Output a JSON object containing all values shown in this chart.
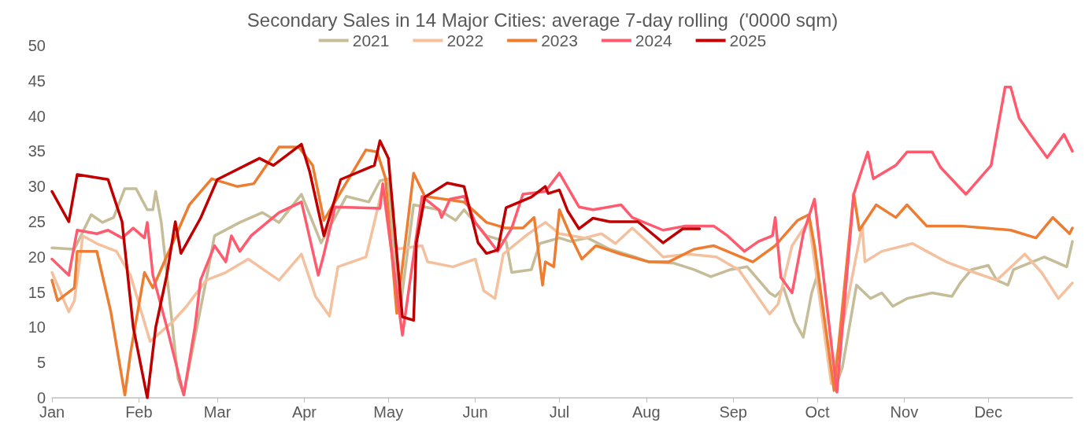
{
  "chart_data": {
    "type": "line",
    "title": "Secondary Sales in 14 Major Cities: average 7-day rolling  ('0000 sqm)",
    "xlim": [
      "--01-01",
      "--12-31"
    ],
    "xticks": [
      {
        "value": "--01-01",
        "label": "Jan"
      },
      {
        "value": "--02-01",
        "label": "Feb"
      },
      {
        "value": "--03-01",
        "label": "Mar"
      },
      {
        "value": "--04-01",
        "label": "Apr"
      },
      {
        "value": "--05-01",
        "label": "May"
      },
      {
        "value": "--06-01",
        "label": "Jun"
      },
      {
        "value": "--07-01",
        "label": "Jul"
      },
      {
        "value": "--08-01",
        "label": "Aug"
      },
      {
        "value": "--09-01",
        "label": "Sep"
      },
      {
        "value": "--10-01",
        "label": "Oct"
      },
      {
        "value": "--11-01",
        "label": "Nov"
      },
      {
        "value": "--12-01",
        "label": "Dec"
      }
    ],
    "ylim": [
      0,
      50
    ],
    "yticks": [
      0,
      5,
      10,
      15,
      20,
      25,
      30,
      35,
      40,
      45,
      50
    ],
    "grid": false,
    "legend": "top",
    "marker": "none",
    "line_style": "solid",
    "series": [
      {
        "name": "2021",
        "color": "#c4bd97",
        "x": [
          "--01-01",
          "--01-09",
          "--01-15",
          "--01-19",
          "--01-23",
          "--01-27",
          "--01-31",
          "--02-04",
          "--02-06",
          "--02-07",
          "--02-09",
          "--02-12",
          "--02-15",
          "--02-17",
          "--02-25",
          "--02-28",
          "--03-09",
          "--03-17",
          "--03-23",
          "--03-31",
          "--04-07",
          "--04-16",
          "--04-24",
          "--04-28",
          "--05-01",
          "--05-05",
          "--05-10",
          "--05-19",
          "--05-25",
          "--05-28",
          "--06-05",
          "--06-12",
          "--06-14",
          "--06-21",
          "--06-24",
          "--07-01",
          "--07-05",
          "--07-11",
          "--07-19",
          "--07-28",
          "--08-02",
          "--08-11",
          "--08-18",
          "--08-24",
          "--08-31",
          "--09-06",
          "--09-14",
          "--09-16",
          "--09-19",
          "--09-23",
          "--09-26",
          "--09-29",
          "--10-01",
          "--10-07",
          "--10-10",
          "--10-15",
          "--10-20",
          "--10-24",
          "--10-28",
          "--11-02",
          "--11-11",
          "--11-18",
          "--11-21",
          "--11-25",
          "--12-01",
          "--12-04",
          "--12-08",
          "--12-10",
          "--12-21",
          "--12-29",
          "--12-31"
        ],
        "values": [
          21.3,
          21.1,
          26,
          24.9,
          25.6,
          29.7,
          29.7,
          26.7,
          26.7,
          29.3,
          24.9,
          13.8,
          2.7,
          0.5,
          16.7,
          23,
          24.9,
          26.3,
          24.9,
          28.9,
          22,
          28.6,
          27.8,
          30.8,
          31.1,
          12,
          27.4,
          26.7,
          25.2,
          26.7,
          23,
          22.2,
          17.8,
          18.2,
          21.9,
          22.7,
          22.2,
          22.7,
          21.1,
          20,
          19.3,
          19.1,
          18.2,
          17.2,
          18.2,
          18.6,
          14.9,
          14.4,
          15.6,
          10.8,
          8.6,
          14.9,
          17.4,
          1,
          4.4,
          16,
          14.1,
          14.9,
          13,
          14.1,
          14.9,
          14.4,
          16.3,
          18.2,
          18.8,
          16.7,
          16,
          18.2,
          20,
          18.6,
          22.2
        ]
      },
      {
        "name": "2022",
        "color": "#f4c09e",
        "x": [
          "--01-01",
          "--01-07",
          "--01-09",
          "--01-12",
          "--01-17",
          "--01-24",
          "--01-29",
          "--02-05",
          "--02-13",
          "--02-18",
          "--02-25",
          "--03-04",
          "--03-12",
          "--03-23",
          "--03-31",
          "--04-05",
          "--04-10",
          "--04-13",
          "--04-23",
          "--04-26",
          "--04-29",
          "--05-02",
          "--05-13",
          "--05-15",
          "--05-24",
          "--06-01",
          "--06-04",
          "--06-08",
          "--06-11",
          "--06-20",
          "--06-26",
          "--07-01",
          "--07-10",
          "--07-16",
          "--07-21",
          "--07-27",
          "--08-02",
          "--08-07",
          "--08-16",
          "--08-26",
          "--09-01",
          "--09-03",
          "--09-14",
          "--09-17",
          "--09-22",
          "--09-28",
          "--10-06",
          "--10-17",
          "--10-18",
          "--10-24",
          "--11-04",
          "--11-09",
          "--11-16",
          "--11-26",
          "--12-04",
          "--12-14",
          "--12-20",
          "--12-26",
          "--12-31"
        ],
        "values": [
          17.8,
          12.2,
          13.8,
          23,
          21.9,
          20.8,
          17.4,
          8,
          10.8,
          13,
          16.7,
          17.8,
          19.7,
          16.7,
          20.4,
          14.4,
          11.6,
          18.6,
          20,
          24.9,
          30,
          21,
          21.6,
          19.3,
          18.6,
          19.7,
          15.2,
          14.1,
          20.4,
          23.3,
          24.9,
          23.3,
          22.7,
          23.3,
          21.9,
          24.1,
          21.9,
          20,
          20.4,
          20,
          18.6,
          18.2,
          11.9,
          13.3,
          21.6,
          25.2,
          2,
          24.4,
          19.3,
          20.8,
          21.9,
          20.8,
          19.3,
          17.8,
          16.7,
          20.4,
          17.8,
          14.1,
          16.3
        ]
      },
      {
        "name": "2023",
        "color": "#ed7d31",
        "x": [
          "--01-01",
          "--01-03",
          "--01-09",
          "--01-10",
          "--01-17",
          "--01-22",
          "--01-27",
          "--01-29",
          "--02-03",
          "--02-06",
          "--02-19",
          "--02-27",
          "--03-08",
          "--03-14",
          "--03-23",
          "--03-30",
          "--04-04",
          "--04-08",
          "--04-23",
          "--04-27",
          "--04-30",
          "--05-04",
          "--05-10",
          "--05-14",
          "--05-28",
          "--06-05",
          "--06-12",
          "--06-18",
          "--06-22",
          "--06-25",
          "--06-26",
          "--06-29",
          "--07-01",
          "--07-05",
          "--07-09",
          "--07-14",
          "--07-23",
          "--08-02",
          "--08-09",
          "--08-18",
          "--08-25",
          "--09-08",
          "--09-16",
          "--09-24",
          "--09-28",
          "--09-30",
          "--10-07",
          "--10-14",
          "--10-16",
          "--10-22",
          "--10-29",
          "--11-02",
          "--11-09",
          "--11-21",
          "--11-30",
          "--12-09",
          "--12-18",
          "--12-24",
          "--12-30",
          "--12-31"
        ],
        "values": [
          16.7,
          13.8,
          15.6,
          20.8,
          20.8,
          12.2,
          0.4,
          6.3,
          17.8,
          15.6,
          27.4,
          31.1,
          30,
          30.4,
          35.6,
          35.6,
          33,
          25.2,
          35.2,
          34.9,
          31.1,
          12,
          31.9,
          28.6,
          27.8,
          24.9,
          24.1,
          24.1,
          25.6,
          16,
          19.3,
          18.6,
          26.7,
          23,
          19.7,
          21.6,
          20.4,
          19.3,
          19.3,
          21.1,
          21.6,
          19.3,
          21.6,
          25.2,
          26,
          21.6,
          1.1,
          29,
          23.8,
          27.4,
          25.6,
          27.4,
          24.4,
          24.4,
          24.1,
          23.8,
          22.7,
          25.6,
          23.3,
          24.1
        ]
      },
      {
        "name": "2024",
        "color": "#ff5a6e",
        "x": [
          "--01-01",
          "--01-07",
          "--01-10",
          "--01-17",
          "--01-21",
          "--01-26",
          "--01-30",
          "--02-03",
          "--02-04",
          "--02-06",
          "--02-11",
          "--02-17",
          "--02-21",
          "--02-23",
          "--02-28",
          "--03-04",
          "--03-06",
          "--03-09",
          "--03-13",
          "--03-23",
          "--03-31",
          "--04-06",
          "--04-08",
          "--04-12",
          "--04-28",
          "--04-29",
          "--05-06",
          "--05-13",
          "--05-19",
          "--05-20",
          "--05-23",
          "--05-28",
          "--06-01",
          "--06-09",
          "--06-14",
          "--06-18",
          "--06-26",
          "--07-01",
          "--07-08",
          "--07-13",
          "--07-23",
          "--07-27",
          "--08-07",
          "--08-15",
          "--08-25",
          "--08-30",
          "--09-05",
          "--09-10",
          "--09-15",
          "--09-16",
          "--09-18",
          "--09-22",
          "--09-26",
          "--09-30",
          "--10-08",
          "--10-14",
          "--10-19",
          "--10-21",
          "--10-29",
          "--11-02",
          "--11-11",
          "--11-14",
          "--11-23",
          "--12-02",
          "--12-07",
          "--12-09",
          "--12-12",
          "--12-16",
          "--12-22",
          "--12-28",
          "--12-31"
        ],
        "values": [
          19.7,
          17.4,
          23.8,
          23.3,
          23.8,
          22.7,
          24.1,
          22.7,
          24.9,
          17.4,
          10,
          0.4,
          10,
          16.7,
          21.6,
          19.3,
          23,
          20.8,
          23,
          26.3,
          27.8,
          17.4,
          20.4,
          27.1,
          26.9,
          30.4,
          8.9,
          28.6,
          26.7,
          25.6,
          28.2,
          28.6,
          24.9,
          20.8,
          24.1,
          28.9,
          29.3,
          31.9,
          27.1,
          26.7,
          27.4,
          25.6,
          23.8,
          24.4,
          24.4,
          23,
          20.8,
          22.2,
          23,
          25.6,
          17.1,
          14.9,
          23.3,
          28.2,
          0.8,
          28.9,
          34.9,
          31.1,
          33,
          34.9,
          34.9,
          32.7,
          28.9,
          33,
          44.1,
          44.1,
          39.7,
          37.4,
          34.1,
          37.4,
          35
        ]
      },
      {
        "name": "2025",
        "color": "#c00000",
        "x": [
          "--01-01",
          "--01-07",
          "--01-10",
          "--01-21",
          "--01-26",
          "--01-30",
          "--02-04",
          "--02-07",
          "--02-11",
          "--02-14",
          "--02-16",
          "--02-23",
          "--03-01",
          "--03-16",
          "--03-21",
          "--03-31",
          "--04-03",
          "--04-08",
          "--04-14",
          "--04-26",
          "--04-28",
          "--05-01",
          "--05-06",
          "--05-10",
          "--05-11",
          "--05-14",
          "--05-22",
          "--05-28",
          "--06-02",
          "--06-05",
          "--06-09",
          "--06-12",
          "--06-21",
          "--06-26",
          "--06-27",
          "--07-01",
          "--07-04",
          "--07-08",
          "--07-13",
          "--07-19",
          "--07-29",
          "--08-07",
          "--08-14",
          "--08-20"
        ],
        "values": [
          29.3,
          25,
          31.7,
          31,
          25,
          10,
          0,
          10,
          17.5,
          25,
          20.5,
          25.5,
          31,
          34,
          33,
          36,
          32,
          23,
          31,
          33,
          36.5,
          34,
          11.5,
          11,
          22,
          28.5,
          30.5,
          30,
          22,
          20.5,
          21,
          27,
          28.5,
          30,
          29,
          29.5,
          26.5,
          24,
          25.5,
          25,
          25,
          22,
          24,
          24
        ]
      }
    ]
  }
}
